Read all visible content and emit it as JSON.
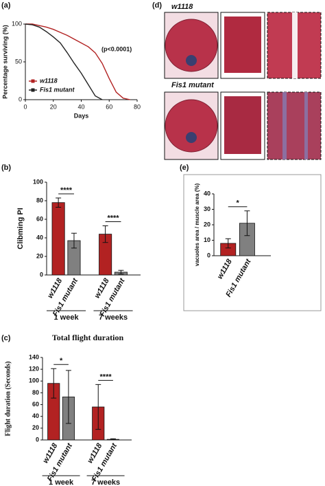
{
  "images": {
    "panel_label": "(d)",
    "rows": [
      {
        "label": "w1118"
      },
      {
        "label": "Fis1 mutant"
      }
    ]
  },
  "chart_data": [
    {
      "type": "line",
      "panel_label": "(a)",
      "y_label": "Percentage surviving (%)",
      "x_label": "Days",
      "annotation": "(p<0.0001)",
      "x": [
        0,
        5,
        10,
        15,
        20,
        25,
        30,
        35,
        40,
        45,
        50,
        55,
        60,
        65,
        70,
        75
      ],
      "series": [
        {
          "name": "w1118",
          "color": "#b22222",
          "values": [
            100,
            100,
            98,
            96,
            93,
            89,
            85,
            80,
            75,
            70,
            62,
            48,
            28,
            10,
            2,
            0
          ]
        },
        {
          "name": "Fis1 mutant",
          "color": "#222222",
          "values": [
            100,
            99,
            96,
            90,
            83,
            75,
            62,
            48,
            35,
            20,
            5,
            0,
            null,
            null,
            null,
            null
          ]
        }
      ],
      "xlim": [
        0,
        80
      ],
      "xticks": [
        0,
        20,
        40,
        60,
        80
      ],
      "ylim": [
        0,
        100
      ],
      "yticks": [
        0,
        50,
        100
      ]
    },
    {
      "type": "bar",
      "panel_label": "(b)",
      "y_label": "Clibming PI",
      "categories": [
        "w1118",
        "Fis1 mutant",
        "w1118",
        "Fis1 mutant"
      ],
      "values": [
        78,
        37,
        44,
        3
      ],
      "errors": [
        5,
        8,
        9,
        2
      ],
      "colors": [
        "#b22222",
        "#808080",
        "#b22222",
        "#808080"
      ],
      "groups": [
        {
          "label": "1 week"
        },
        {
          "label": "7 weeks"
        }
      ],
      "significance": [
        {
          "label": "****"
        },
        {
          "label": "****"
        }
      ],
      "ylim": [
        0,
        100
      ],
      "yticks": [
        0,
        20,
        40,
        60,
        80,
        100
      ]
    },
    {
      "type": "bar",
      "panel_label": "(e)",
      "y_label": "vacuoles area / muscle area (%)",
      "categories": [
        "w1118",
        "Fis1 mutant"
      ],
      "values": [
        8,
        21
      ],
      "errors": [
        3,
        8
      ],
      "colors": [
        "#b22222",
        "#808080"
      ],
      "significance": [
        {
          "label": "*"
        }
      ],
      "ylim": [
        0,
        40
      ],
      "yticks": [
        0,
        10,
        20,
        30,
        40
      ]
    },
    {
      "type": "bar",
      "panel_label": "(c)",
      "title": "Total flight duration",
      "y_label": "Flight duration (Seconds)",
      "categories": [
        "w1118",
        "Fis1 mutant",
        "w1118",
        "Fis1 mutant"
      ],
      "values": [
        96,
        73,
        56,
        1
      ],
      "errors": [
        25,
        45,
        38,
        1
      ],
      "colors": [
        "#b22222",
        "#808080",
        "#b22222",
        "#808080"
      ],
      "groups": [
        {
          "label": "1 week"
        },
        {
          "label": "7 weeks"
        }
      ],
      "significance": [
        {
          "label": "*"
        },
        {
          "label": "****"
        }
      ],
      "ylim": [
        0,
        140
      ],
      "yticks": [
        0,
        20,
        40,
        60,
        80,
        100,
        120,
        140
      ]
    }
  ]
}
